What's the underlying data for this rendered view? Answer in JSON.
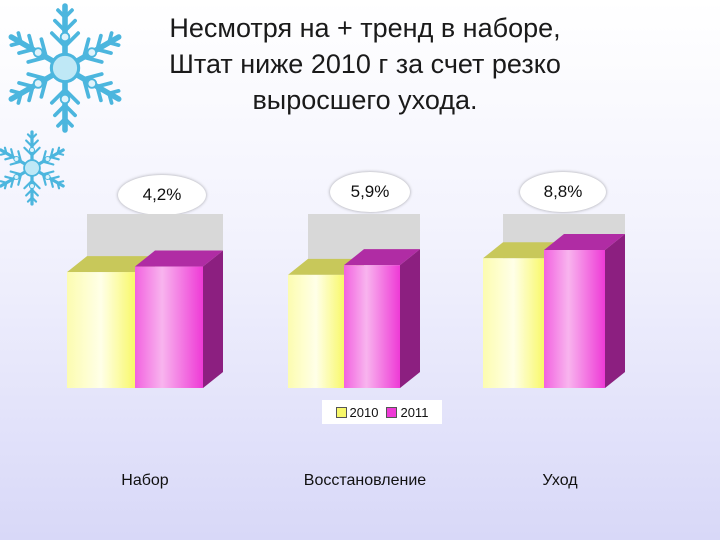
{
  "title_lines": [
    "Несмотря на + тренд в наборе,",
    "Штат ниже 2010 г за счет резко",
    "выросшего ухода."
  ],
  "colors": {
    "series_2010": "#f8f86a",
    "series_2011": "#ee3ad6",
    "snowflake": "#4cb6de"
  },
  "chart_data": {
    "type": "bar",
    "categories": [
      "Набор",
      "Восстановление",
      "Уход"
    ],
    "series": [
      {
        "name": "2010",
        "values": [
          0.84,
          0.82,
          0.94
        ]
      },
      {
        "name": "2011",
        "values": [
          0.88,
          0.89,
          1.0
        ]
      }
    ],
    "data_labels": [
      "4,2%",
      "5,9%",
      "8,8%"
    ],
    "legend": {
      "position": "bottom",
      "entries": [
        "2010",
        "2011"
      ]
    },
    "grid": false,
    "bar_style": "3d"
  }
}
